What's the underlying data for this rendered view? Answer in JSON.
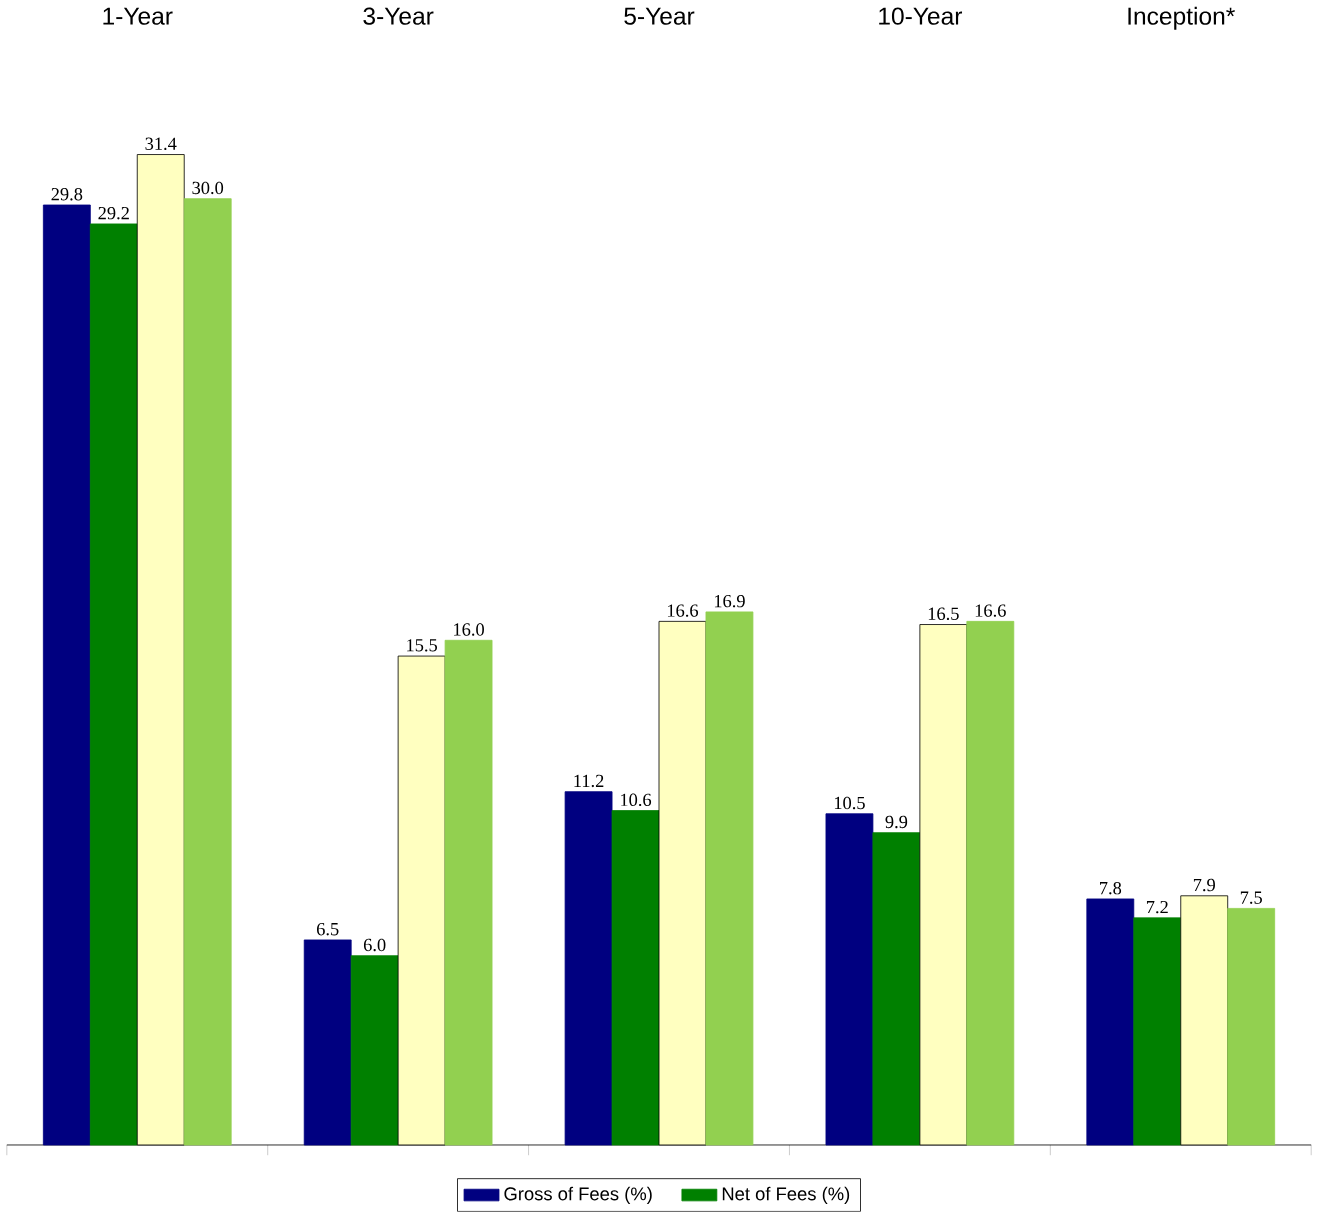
{
  "chart_data": {
    "type": "bar",
    "categories": [
      "1-Year",
      "3-Year",
      "5-Year",
      "10-Year",
      "Inception*"
    ],
    "series": [
      {
        "name": "Gross of Fees (%)",
        "color": "#000080",
        "values": [
          29.8,
          6.5,
          11.2,
          10.5,
          7.8
        ],
        "value_labels": [
          "29.8",
          "6.5",
          "11.2",
          "10.5",
          "7.8"
        ]
      },
      {
        "name": "Net of Fees (%)",
        "color": "#008000",
        "values": [
          29.2,
          6.0,
          10.6,
          9.9,
          7.2
        ],
        "value_labels": [
          "29.2",
          "6.0",
          "10.6",
          "9.9",
          "7.2"
        ]
      },
      {
        "color": "#ffffc0",
        "values": [
          31.4,
          15.5,
          16.6,
          16.5,
          7.9
        ],
        "value_labels": [
          "31.4",
          "15.5",
          "16.6",
          "16.5",
          "7.9"
        ]
      },
      {
        "color": "#92d050",
        "values": [
          30.0,
          16.0,
          16.9,
          16.6,
          7.5
        ],
        "value_labels": [
          "30.0",
          "16.0",
          "16.9",
          "16.6",
          "7.5"
        ]
      }
    ],
    "legend": "bottom"
  }
}
